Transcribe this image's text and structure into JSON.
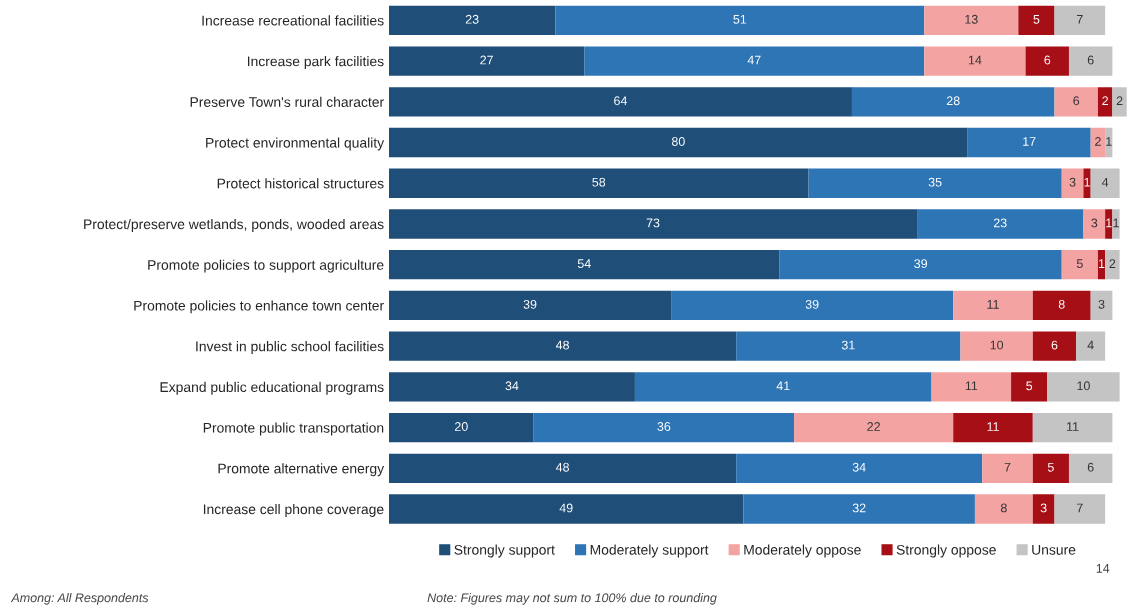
{
  "chart_data": {
    "type": "bar",
    "orientation": "horizontal",
    "stacked": true,
    "data_labels": true,
    "legend": "bottom",
    "grid": false,
    "tick_labels": "y",
    "categories": [
      "Increase recreational facilities",
      "Increase park facilities",
      "Preserve Town's rural character",
      "Protect environmental quality",
      "Protect historical structures",
      "Protect/preserve wetlands, ponds, wooded areas",
      "Promote policies to support agriculture",
      "Promote policies to enhance town center",
      "Invest in public school facilities",
      "Expand public educational programs",
      "Promote public transportation",
      "Promote alternative energy",
      "Increase cell phone coverage"
    ],
    "series": [
      {
        "name": "Strongly support",
        "color": "#1f4e79",
        "values": [
          23,
          27,
          64,
          80,
          58,
          73,
          54,
          39,
          48,
          34,
          20,
          48,
          49
        ]
      },
      {
        "name": "Moderately support",
        "color": "#2e75b6",
        "values": [
          51,
          47,
          28,
          17,
          35,
          23,
          39,
          39,
          31,
          41,
          36,
          34,
          32
        ]
      },
      {
        "name": "Moderately oppose",
        "color": "#f4a3a3",
        "values": [
          13,
          14,
          6,
          2,
          3,
          3,
          5,
          11,
          10,
          11,
          22,
          7,
          8
        ]
      },
      {
        "name": "Strongly oppose",
        "color": "#a50f15",
        "values": [
          5,
          6,
          2,
          null,
          1,
          1,
          1,
          8,
          6,
          5,
          11,
          5,
          3
        ]
      },
      {
        "name": "Unsure",
        "color": "#c4c4c4",
        "values": [
          7,
          6,
          2,
          1,
          4,
          1,
          2,
          3,
          4,
          10,
          11,
          6,
          7
        ]
      }
    ],
    "annotations": [
      "Among: All Respondents",
      "Note: Figures may not sum to 100% due to rounding",
      "14"
    ]
  }
}
